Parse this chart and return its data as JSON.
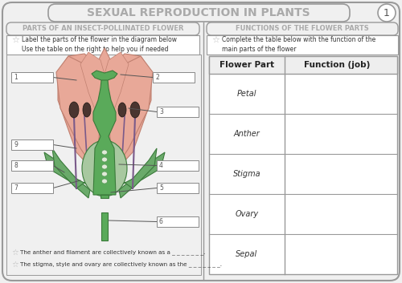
{
  "title": "SEXUAL REPRODUCTION IN PLANTS",
  "page_num": "1",
  "left_section_title": "PARTS OF AN INSECT-POLLINATED FLOWER",
  "right_section_title": "FUNCTIONS OF THE FLOWER PARTS",
  "left_instruction": "Label the parts of the flower in the diagram below\nUse the table on the right to help you if needed",
  "right_instruction": "Complete the table below with the function of the\nmain parts of the flower",
  "table_headers": [
    "Flower Part",
    "Function (job)"
  ],
  "table_rows": [
    "Petal",
    "Anther",
    "Stigma",
    "Ovary",
    "Sepal"
  ],
  "footer_lines": [
    "The anther and filament are collectively known as a _ _ _ _ _ _ _.",
    "The stigma, style and ovary are collectively known as the _ _ _ _ _ _ _."
  ],
  "bg_color": "#f0f0f0",
  "petal_color": "#e8a898",
  "sepal_color": "#6aaa6a",
  "style_color": "#5aaa5a",
  "anther_color": "#4a3530",
  "ovary_bg": "#a8c8a0",
  "ovule_fill": "#d8e8c8",
  "filament_color": "#7a5a8a",
  "title_color": "#aaaaaa",
  "section_title_color": "#aaaaaa",
  "table_line_color": "#999999",
  "label_line_color": "#555555"
}
